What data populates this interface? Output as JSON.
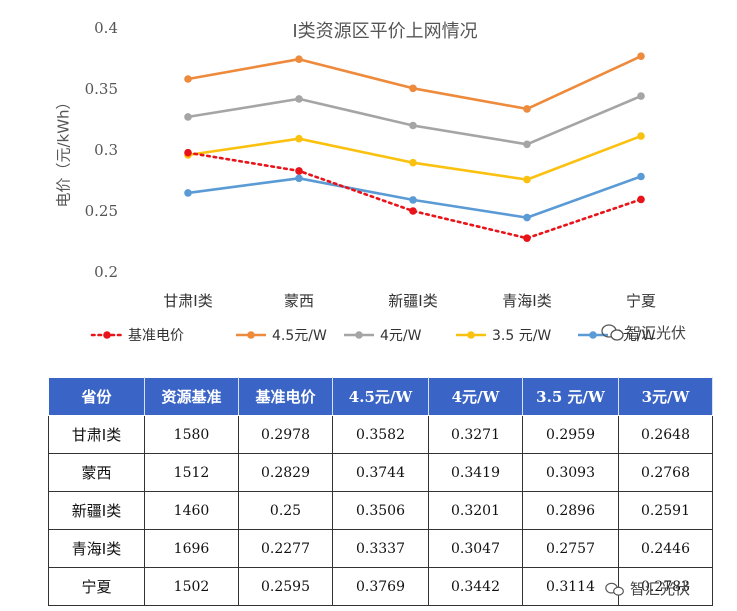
{
  "chart_data": {
    "type": "line",
    "title": "I类资源区平价上网情况",
    "xlabel": "",
    "ylabel": "电价（元/kWh）",
    "ylim": [
      0.2,
      0.4
    ],
    "yticks": [
      "0.2",
      "0.25",
      "0.3",
      "0.35",
      "0.4"
    ],
    "grid": false,
    "legend_position": "bottom",
    "categories": [
      "甘肃I类",
      "蒙西",
      "新疆I类",
      "青海I类",
      "宁夏"
    ],
    "series": [
      {
        "name": "基准电价",
        "values": [
          0.2978,
          0.2829,
          0.25,
          0.2277,
          0.2595
        ],
        "color": "#e8141a",
        "style": "dotted"
      },
      {
        "name": "4.5元/W",
        "values": [
          0.3582,
          0.3744,
          0.3506,
          0.3337,
          0.3769
        ],
        "color": "#ee8a3c",
        "style": "solid"
      },
      {
        "name": "4元/W",
        "values": [
          0.3271,
          0.3419,
          0.3201,
          0.3047,
          0.3442
        ],
        "color": "#a5a5a5",
        "style": "solid"
      },
      {
        "name": "3.5 元/W",
        "values": [
          0.2959,
          0.3093,
          0.2896,
          0.2757,
          0.3114
        ],
        "color": "#fbc110",
        "style": "solid"
      },
      {
        "name": "3元/W",
        "values": [
          0.2648,
          0.2768,
          0.2591,
          0.2446,
          0.2783
        ],
        "color": "#5b9bd5",
        "style": "solid"
      }
    ]
  },
  "table": {
    "headers": [
      "省份",
      "资源基准",
      "基准电价",
      "4.5元/W",
      "4元/W",
      "3.5 元/W",
      "3元/W"
    ],
    "rows": [
      [
        "甘肃I类",
        "1580",
        "0.2978",
        "0.3582",
        "0.3271",
        "0.2959",
        "0.2648"
      ],
      [
        "蒙西",
        "1512",
        "0.2829",
        "0.3744",
        "0.3419",
        "0.3093",
        "0.2768"
      ],
      [
        "新疆I类",
        "1460",
        "0.25",
        "0.3506",
        "0.3201",
        "0.2896",
        "0.2591"
      ],
      [
        "青海I类",
        "1696",
        "0.2277",
        "0.3337",
        "0.3047",
        "0.2757",
        "0.2446"
      ],
      [
        "宁夏",
        "1502",
        "0.2595",
        "0.3769",
        "0.3442",
        "0.3114",
        "0.2783"
      ]
    ]
  },
  "watermark": {
    "text": "智汇光伏",
    "icon": "wechat-icon"
  }
}
